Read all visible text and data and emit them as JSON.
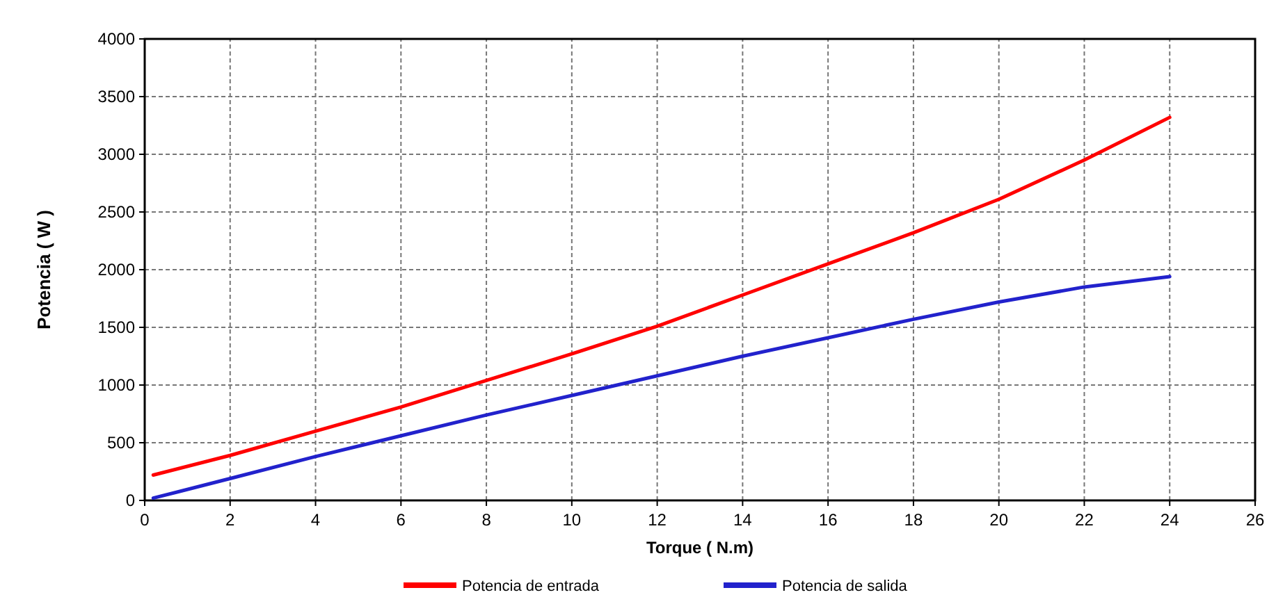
{
  "chart_data": {
    "type": "line",
    "xlabel": "Torque ( N.m)",
    "ylabel": "Potencia ( W )",
    "xlim": [
      0,
      26
    ],
    "xticks": [
      0,
      2,
      4,
      6,
      8,
      10,
      12,
      14,
      16,
      18,
      20,
      22,
      24,
      26
    ],
    "ylim": [
      0,
      4000
    ],
    "yticks": [
      0,
      500,
      1000,
      1500,
      2000,
      2500,
      3000,
      3500,
      4000
    ],
    "grid": true,
    "legend": "bottom",
    "marker": "none",
    "line_style": "solid",
    "series": [
      {
        "name": "Potencia de entrada",
        "color": "#ff0000",
        "x": [
          0.2,
          2,
          4,
          6,
          8,
          10,
          12,
          14,
          16,
          18,
          20,
          22,
          24
        ],
        "values": [
          220,
          390,
          600,
          810,
          1040,
          1270,
          1510,
          1780,
          2050,
          2320,
          2610,
          2950,
          3320
        ]
      },
      {
        "name": "Potencia de salida",
        "color": "#2222cc",
        "x": [
          0.2,
          2,
          4,
          6,
          8,
          10,
          12,
          14,
          16,
          18,
          20,
          22,
          24
        ],
        "values": [
          20,
          190,
          380,
          560,
          740,
          910,
          1080,
          1250,
          1410,
          1570,
          1720,
          1850,
          1940
        ]
      }
    ]
  }
}
